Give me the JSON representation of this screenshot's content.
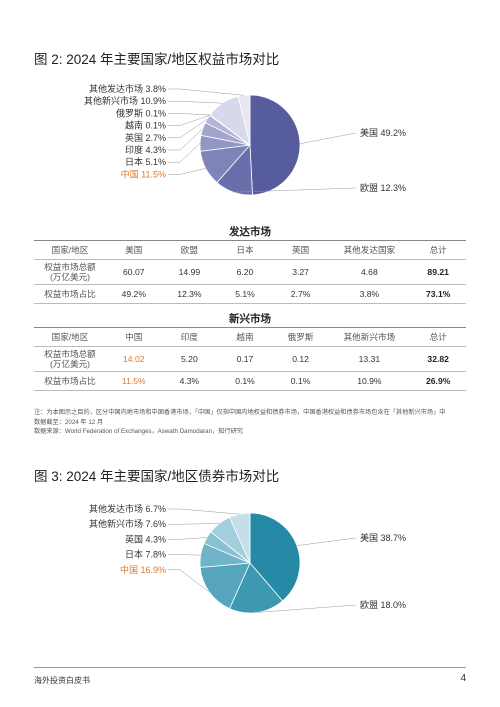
{
  "figure2": {
    "title": "图 2:  2024 年主要国家/地区权益市场对比",
    "chart_data": {
      "type": "pie",
      "title": "2024 年主要国家/地区权益市场对比",
      "slices": [
        {
          "label": "美国 49.2%",
          "name": "美国",
          "value": 49.2,
          "color": "#575c9e",
          "side": "right"
        },
        {
          "label": "欧盟 12.3%",
          "name": "欧盟",
          "value": 12.3,
          "color": "#6a6fab",
          "side": "right"
        },
        {
          "label": "中国 11.5%",
          "name": "中国",
          "value": 11.5,
          "color": "#7f84b8",
          "side": "left",
          "highlight": true
        },
        {
          "label": "日本 5.1%",
          "name": "日本",
          "value": 5.1,
          "color": "#9296c3",
          "side": "left"
        },
        {
          "label": "印度 4.3%",
          "name": "印度",
          "value": 4.3,
          "color": "#a3a6cc",
          "side": "left"
        },
        {
          "label": "英国 2.7%",
          "name": "英国",
          "value": 2.7,
          "color": "#b2b5d5",
          "side": "left"
        },
        {
          "label": "越南 0.1%",
          "name": "越南",
          "value": 0.1,
          "color": "#c2c4dd",
          "side": "left"
        },
        {
          "label": "俄罗斯 0.1%",
          "name": "俄罗斯",
          "value": 0.1,
          "color": "#ccceE3",
          "side": "left"
        },
        {
          "label": "其他新兴市场 10.9%",
          "name": "其他新兴市场",
          "value": 10.9,
          "color": "#d7d8e9",
          "side": "left"
        },
        {
          "label": "其他发达市场 3.8%",
          "name": "其他发达市场",
          "value": 3.8,
          "color": "#e6e7f1",
          "side": "left"
        }
      ]
    }
  },
  "developed": {
    "title": "发达市场",
    "headers": [
      "国家/地区",
      "美国",
      "欧盟",
      "日本",
      "英国",
      "其他发达国家",
      "总计"
    ],
    "rows": [
      {
        "label": "权益市场总额\n(万亿美元)",
        "cells": [
          "60.07",
          "14.99",
          "6.20",
          "3.27",
          "4.68",
          "89.21"
        ]
      },
      {
        "label": "权益市场占比",
        "cells": [
          "49.2%",
          "12.3%",
          "5.1%",
          "2.7%",
          "3.8%",
          "73.1%"
        ]
      }
    ]
  },
  "emerging": {
    "title": "新兴市场",
    "headers": [
      "国家/地区",
      "中国",
      "印度",
      "越南",
      "俄罗斯",
      "其他新兴市场",
      "总计"
    ],
    "rows": [
      {
        "label": "权益市场总额\n(万亿美元)",
        "cells": [
          "14.02",
          "5.20",
          "0.17",
          "0.12",
          "13.31",
          "32.82"
        ]
      },
      {
        "label": "权益市场占比",
        "cells": [
          "11.5%",
          "4.3%",
          "0.1%",
          "0.1%",
          "10.9%",
          "26.9%"
        ]
      }
    ]
  },
  "notes": {
    "line1": "注：为本图示之目的，区分中国内地市场和中国香港市场，「中国」仅指中国内地权益和债券市场，中国香港权益和债券市场包含在「其他新兴市场」中",
    "line2": "数据截至：2024 年 12 月",
    "line3": "数据来源：World Federation of Exchanges，Aswath Damodaran，知行研究"
  },
  "figure3": {
    "title": "图 3:  2024 年主要国家/地区债券市场对比",
    "chart_data": {
      "type": "pie",
      "title": "2024 年主要国家/地区债券市场对比",
      "slices": [
        {
          "label": "美国 38.7%",
          "name": "美国",
          "value": 38.7,
          "color": "#2689a6",
          "side": "right"
        },
        {
          "label": "欧盟 18.0%",
          "name": "欧盟",
          "value": 18.0,
          "color": "#3d98b2",
          "side": "right"
        },
        {
          "label": "中国 16.9%",
          "name": "中国",
          "value": 16.9,
          "color": "#55a6bd",
          "side": "left",
          "highlight": true
        },
        {
          "label": "日本 7.8%",
          "name": "日本",
          "value": 7.8,
          "color": "#6fb4c8",
          "side": "left"
        },
        {
          "label": "英国 4.3%",
          "name": "英国",
          "value": 4.3,
          "color": "#88c1d2",
          "side": "left"
        },
        {
          "label": "其他新兴市场 7.6%",
          "name": "其他新兴市场",
          "value": 7.6,
          "color": "#a3cfdd",
          "side": "left"
        },
        {
          "label": "其他发达市场 6.7%",
          "name": "其他发达市场",
          "value": 6.7,
          "color": "#c3e0e9",
          "side": "left"
        }
      ]
    }
  },
  "footer": {
    "left": "海外投资白皮书",
    "page": "4"
  },
  "colors": {
    "highlight": "#e07a2a"
  }
}
